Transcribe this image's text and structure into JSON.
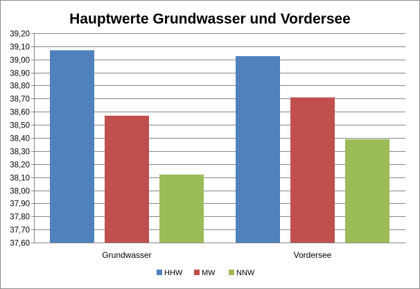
{
  "chart_data": {
    "type": "bar",
    "title": "Hauptwerte Grundwasser und Vordersee",
    "xlabel": "",
    "ylabel": "",
    "categories": [
      "Grundwasser",
      "Vordersee"
    ],
    "series": [
      {
        "name": "HHW",
        "color": "#4f81bd",
        "values": [
          39.07,
          39.025
        ]
      },
      {
        "name": "MW",
        "color": "#c0504d",
        "values": [
          38.57,
          38.71
        ]
      },
      {
        "name": "NNW",
        "color": "#9bbb59",
        "values": [
          38.12,
          38.39
        ]
      }
    ],
    "ylim": [
      37.6,
      39.2
    ],
    "ytick_step": 0.1,
    "yticks": [
      "37,60",
      "37,70",
      "37,80",
      "37,90",
      "38,00",
      "38,10",
      "38,20",
      "38,30",
      "38,40",
      "38,50",
      "38,60",
      "38,70",
      "38,80",
      "38,90",
      "39,00",
      "39,10",
      "39,20"
    ],
    "grid": true,
    "legend_position": "bottom"
  }
}
